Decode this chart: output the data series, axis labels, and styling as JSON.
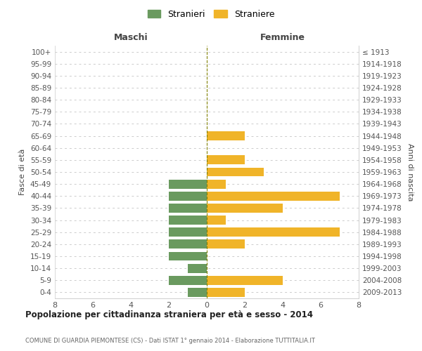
{
  "age_groups": [
    "0-4",
    "5-9",
    "10-14",
    "15-19",
    "20-24",
    "25-29",
    "30-34",
    "35-39",
    "40-44",
    "45-49",
    "50-54",
    "55-59",
    "60-64",
    "65-69",
    "70-74",
    "75-79",
    "80-84",
    "85-89",
    "90-94",
    "95-99",
    "100+"
  ],
  "birth_years": [
    "2009-2013",
    "2004-2008",
    "1999-2003",
    "1994-1998",
    "1989-1993",
    "1984-1988",
    "1979-1983",
    "1974-1978",
    "1969-1973",
    "1964-1968",
    "1959-1963",
    "1954-1958",
    "1949-1953",
    "1944-1948",
    "1939-1943",
    "1934-1938",
    "1929-1933",
    "1924-1928",
    "1919-1923",
    "1914-1918",
    "≤ 1913"
  ],
  "maschi": [
    1,
    2,
    1,
    2,
    2,
    2,
    2,
    2,
    2,
    2,
    0,
    0,
    0,
    0,
    0,
    0,
    0,
    0,
    0,
    0,
    0
  ],
  "femmine": [
    2,
    4,
    0,
    0,
    2,
    7,
    1,
    4,
    7,
    1,
    3,
    2,
    0,
    2,
    0,
    0,
    0,
    0,
    0,
    0,
    0
  ],
  "color_maschi": "#6a9a5f",
  "color_femmine": "#f0b429",
  "label_maschi_top": "Maschi",
  "label_femmine_top": "Femmine",
  "ylabel_left": "Fasce di età",
  "ylabel_right": "Anni di nascita",
  "title": "Popolazione per cittadinanza straniera per età e sesso - 2014",
  "subtitle": "COMUNE DI GUARDIA PIEMONTESE (CS) - Dati ISTAT 1° gennaio 2014 - Elaborazione TUTTITALIA.IT",
  "legend_maschi": "Stranieri",
  "legend_femmine": "Straniere",
  "xlim": 8,
  "bar_height": 0.75,
  "background_color": "#ffffff",
  "grid_color": "#cccccc",
  "vline_color": "#808000"
}
